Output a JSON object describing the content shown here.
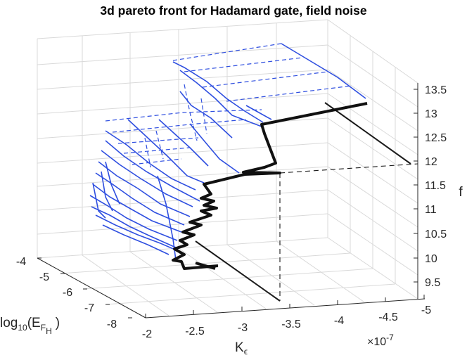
{
  "chart_data": {
    "type": "line",
    "title": "3d pareto front for Hadamard gate, field noise",
    "x_axis": {
      "label_main": "K",
      "label_sub": "ϵ",
      "multiplier": "×10",
      "multiplier_exp": "-7",
      "range": [
        -5,
        -2
      ],
      "ticks": [
        "-2",
        "-2.5",
        "-3",
        "-3.5",
        "-4",
        "-4.5",
        "-5"
      ]
    },
    "y_axis": {
      "label_main": "log",
      "label_sub1": "10",
      "label_mid": "(E",
      "label_sub2": "F",
      "label_sub3": "H",
      "label_end": ")",
      "range": [
        -8,
        -4
      ],
      "ticks": [
        "-4",
        "-5",
        "-6",
        "-7",
        "-8"
      ]
    },
    "z_axis": {
      "label": "f",
      "range": [
        9,
        13.5
      ],
      "ticks": [
        "9.5",
        "10",
        "10.5",
        "11",
        "11.5",
        "12",
        "12.5",
        "13",
        "13.5"
      ]
    },
    "grid": true,
    "colors": {
      "front": "#1a1a1a",
      "surface": "#2f4fe0",
      "grid": "#d9d9d9",
      "axis": "#262626"
    },
    "highlight_point": {
      "x": -3.75,
      "y": -4.0,
      "z": 11.8
    },
    "front_series": {
      "name": "",
      "points": [
        [
          -4.9,
          -4.0,
          13.2
        ],
        [
          -3.85,
          -4.2,
          12.9
        ],
        [
          -3.75,
          -4.3,
          12.4
        ],
        [
          -3.82,
          -4.4,
          12.15
        ],
        [
          -3.9,
          -4.55,
          12.0
        ],
        [
          -3.7,
          -4.6,
          11.85
        ],
        [
          -3.75,
          -4.7,
          11.8
        ],
        [
          -3.45,
          -5.0,
          11.7
        ],
        [
          -3.3,
          -5.6,
          11.55
        ],
        [
          -3.1,
          -6.2,
          11.4
        ],
        [
          -3.2,
          -6.5,
          11.25
        ],
        [
          -3.0,
          -6.7,
          11.1
        ],
        [
          -3.2,
          -6.9,
          11.0
        ],
        [
          -3.05,
          -7.0,
          10.85
        ],
        [
          -3.2,
          -7.1,
          10.75
        ],
        [
          -2.95,
          -7.3,
          10.6
        ],
        [
          -3.1,
          -7.4,
          10.45
        ],
        [
          -2.9,
          -7.6,
          10.3
        ],
        [
          -3.0,
          -7.75,
          10.15
        ],
        [
          -2.8,
          -7.9,
          10.0
        ],
        [
          -3.0,
          -8.0,
          9.85
        ],
        [
          -2.85,
          -8.0,
          9.7
        ],
        [
          -3.1,
          -8.0,
          9.6
        ]
      ]
    }
  }
}
